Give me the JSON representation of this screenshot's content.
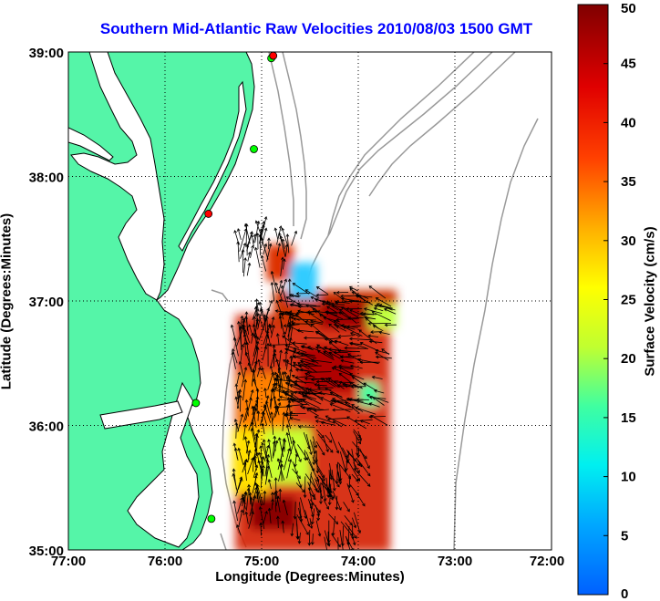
{
  "title": "Southern Mid-Atlantic Raw Velocities 2010/08/03 1500 GMT",
  "x_axis": {
    "label": "Longitude (Degrees:Minutes)",
    "ticks": [
      "77:00",
      "76:00",
      "75:00",
      "74:00",
      "73:00",
      "72:00"
    ]
  },
  "y_axis": {
    "label": "Latitude (Degrees:Minutes)",
    "ticks": [
      "39:00",
      "38:00",
      "37:00",
      "36:00",
      "35:00"
    ]
  },
  "colorbar": {
    "label": "Surface Velocity (cm/s)",
    "min": 0,
    "max": 50,
    "ticks": [
      "0",
      "5",
      "10",
      "15",
      "20",
      "25",
      "30",
      "35",
      "40",
      "45",
      "50"
    ]
  },
  "map": {
    "lon_range": [
      -77,
      -72
    ],
    "lat_range": [
      35,
      39
    ],
    "land_color": "#55f5a8",
    "water_color": "#ffffff",
    "coast_color": "#000000",
    "bathymetry_color": "#999999",
    "grid": "dotted",
    "station_markers": [
      {
        "color": "#00ff00",
        "lon": -74.9,
        "lat": 38.95
      },
      {
        "color": "#ff0000",
        "lon": -74.88,
        "lat": 38.97
      },
      {
        "color": "#00ff00",
        "lon": -75.08,
        "lat": 38.22
      },
      {
        "color": "#ff0000",
        "lon": -75.55,
        "lat": 37.7
      },
      {
        "color": "#00ff00",
        "lon": -75.68,
        "lat": 36.18
      },
      {
        "color": "#00ff00",
        "lon": -75.52,
        "lat": 35.25
      }
    ]
  }
}
